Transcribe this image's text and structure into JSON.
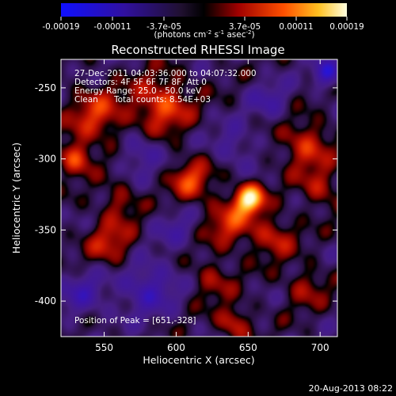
{
  "chart_data": {
    "type": "heatmap",
    "title": "Reconstructed RHESSI Image",
    "xlabel": "Heliocentric X (arcsec)",
    "ylabel": "Heliocentric Y (arcsec)",
    "xlim": [
      520,
      712
    ],
    "ylim": [
      -425,
      -230
    ],
    "x_ticks": [
      "550",
      "600",
      "650",
      "700"
    ],
    "x_tick_values": [
      550,
      600,
      650,
      700
    ],
    "y_ticks": [
      "-250",
      "-300",
      "-350",
      "-400"
    ],
    "y_tick_values": [
      -250,
      -300,
      -350,
      -400
    ],
    "colorbar": {
      "tick_labels": [
        "-0.00019",
        "-0.00011",
        "-3.7e-05",
        "3.7e-05",
        "0.00011",
        "0.00019"
      ],
      "units": "(photons cm<sup>-2</sup> s<sup>-1</sup> asec<sup>-2</sup>)",
      "min": -0.00019,
      "max": 0.00019
    },
    "annotations": {
      "time_range": "27-Dec-2011 04:03:36.000 to 04:07:32.000",
      "detectors": "Detectors: 4F 5F 6F 7F 8F, Att 0",
      "energy": "Energy Range: 25.0 - 50.0 keV",
      "clean": "Clean",
      "counts": "Total counts: 8.54E+03",
      "peak": "Position of Peak = [651,-328]"
    },
    "peak": {
      "x": 651,
      "y": -328
    },
    "image_features": [
      {
        "x": 651,
        "y": -328,
        "amplitude": 1.0,
        "sigma": 7
      },
      {
        "x": 638,
        "y": -345,
        "amplitude": 0.45,
        "sigma": 12
      },
      {
        "x": 668,
        "y": -355,
        "amplitude": 0.4,
        "sigma": 10
      },
      {
        "x": 590,
        "y": -262,
        "amplitude": 0.55,
        "sigma": 14
      },
      {
        "x": 545,
        "y": -270,
        "amplitude": 0.45,
        "sigma": 14
      },
      {
        "x": 530,
        "y": -300,
        "amplitude": 0.55,
        "sigma": 8
      },
      {
        "x": 610,
        "y": -315,
        "amplitude": 0.5,
        "sigma": 10
      },
      {
        "x": 555,
        "y": -360,
        "amplitude": 0.4,
        "sigma": 12
      },
      {
        "x": 640,
        "y": -415,
        "amplitude": 0.45,
        "sigma": 8
      },
      {
        "x": 690,
        "y": -290,
        "amplitude": 0.45,
        "sigma": 12
      },
      {
        "x": 700,
        "y": -320,
        "amplitude": 0.35,
        "sigma": 10
      },
      {
        "x": 560,
        "y": -330,
        "amplitude": 0.3,
        "sigma": 9
      },
      {
        "x": 625,
        "y": -385,
        "amplitude": 0.3,
        "sigma": 10
      },
      {
        "x": 690,
        "y": -390,
        "amplitude": 0.3,
        "sigma": 10
      },
      {
        "x": 575,
        "y": -295,
        "amplitude": -0.35,
        "sigma": 10
      },
      {
        "x": 580,
        "y": -390,
        "amplitude": -0.45,
        "sigma": 14
      },
      {
        "x": 705,
        "y": -240,
        "amplitude": -0.6,
        "sigma": 7
      },
      {
        "x": 640,
        "y": -290,
        "amplitude": -0.3,
        "sigma": 10
      },
      {
        "x": 535,
        "y": -395,
        "amplitude": -0.35,
        "sigma": 12
      },
      {
        "x": 665,
        "y": -260,
        "amplitude": -0.3,
        "sigma": 10
      },
      {
        "x": 600,
        "y": -350,
        "amplitude": -0.25,
        "sigma": 10
      }
    ]
  },
  "footer": {
    "timestamp": "20-Aug-2013 08:22"
  },
  "colors": {
    "background": "#000000",
    "text": "#ffffff",
    "negative": "#2020ff",
    "positive": "#ffff60"
  }
}
